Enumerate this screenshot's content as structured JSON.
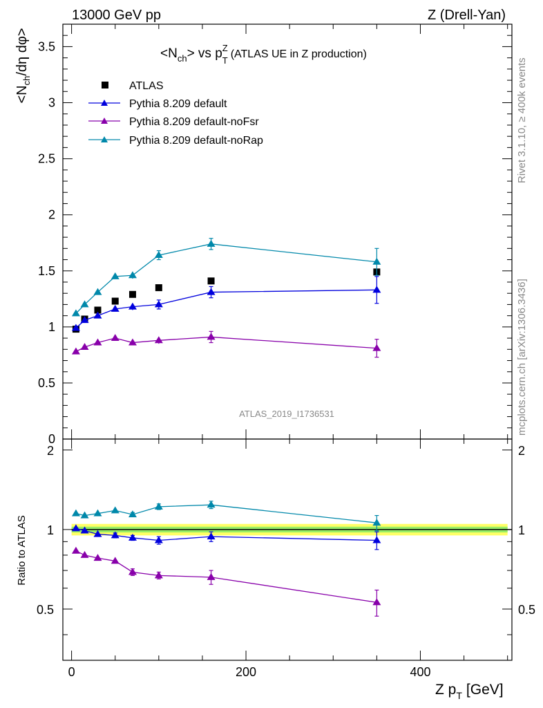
{
  "header": {
    "left": "13000 GeV pp",
    "right": "Z (Drell-Yan)"
  },
  "side_labels": {
    "rivet": "Rivet 3.1.10, ≥ 400k events",
    "mcplots": "mcplots.cern.ch [arXiv:1306.3436]"
  },
  "watermark": "ATLAS_2019_I1736531",
  "chart_data": {
    "type": "scatter",
    "title": {
      "n": "<N",
      "ch": "ch",
      "vs": "> vs p",
      "t": "T",
      "z": "Z",
      "rest": "(ATLAS UE in Z production)"
    },
    "ylabel": "<N_ch/dη dφ>",
    "xlabel": {
      "main": "Z p",
      "sub": "T",
      "unit": "[GeV]"
    },
    "ratio_ylabel": "Ratio to ATLAS",
    "xlim": [
      -10,
      505
    ],
    "ylim": [
      0,
      3.7
    ],
    "ratio_ylim": [
      0.32,
      2.2
    ],
    "xticks": [
      0,
      200,
      400
    ],
    "yticks": [
      0,
      0.5,
      1,
      1.5,
      2,
      2.5,
      3,
      3.5
    ],
    "yticks_labels": [
      "0",
      "0.5",
      "1",
      "1.5",
      "2",
      "2.5",
      "3",
      "3.5"
    ],
    "ratio_yticks": [
      0.5,
      1,
      2
    ],
    "x": [
      5,
      15,
      30,
      50,
      70,
      100,
      160,
      350
    ],
    "series": [
      {
        "name": "ATLAS",
        "color": "#000000",
        "marker": "square",
        "values": [
          0.98,
          1.07,
          1.15,
          1.23,
          1.29,
          1.35,
          1.41,
          1.49
        ],
        "errors": [
          0.01,
          0.01,
          0.01,
          0.01,
          0.01,
          0.01,
          0.01,
          0.02
        ],
        "band": [
          0.02,
          0.02,
          0.02,
          0.02,
          0.02,
          0.02,
          0.02,
          0.02
        ]
      },
      {
        "name": "Pythia 8.209 default",
        "color": "#0000dd",
        "marker": "triangle",
        "values": [
          0.99,
          1.06,
          1.1,
          1.16,
          1.18,
          1.2,
          1.31,
          1.33
        ],
        "errors": [
          0.01,
          0.01,
          0.015,
          0.02,
          0.03,
          0.04,
          0.05,
          0.12
        ],
        "ratio": [
          1.01,
          0.99,
          0.96,
          0.95,
          0.93,
          0.91,
          0.94,
          0.91
        ],
        "ratio_errors": [
          0.01,
          0.01,
          0.01,
          0.02,
          0.02,
          0.03,
          0.04,
          0.07
        ]
      },
      {
        "name": "Pythia 8.209 default-noFsr",
        "color": "#8800aa",
        "marker": "triangle",
        "values": [
          0.78,
          0.82,
          0.86,
          0.9,
          0.86,
          0.88,
          0.91,
          0.81
        ],
        "errors": [
          0.01,
          0.01,
          0.015,
          0.02,
          0.02,
          0.03,
          0.05,
          0.08
        ],
        "ratio": [
          0.83,
          0.8,
          0.78,
          0.76,
          0.69,
          0.67,
          0.66,
          0.53
        ],
        "ratio_errors": [
          0.01,
          0.01,
          0.01,
          0.015,
          0.02,
          0.02,
          0.04,
          0.06
        ]
      },
      {
        "name": "Pythia 8.209 default-noRap",
        "color": "#0088aa",
        "marker": "triangle",
        "values": [
          1.12,
          1.2,
          1.31,
          1.45,
          1.46,
          1.64,
          1.74,
          1.58
        ],
        "errors": [
          0.01,
          0.01,
          0.015,
          0.02,
          0.03,
          0.04,
          0.05,
          0.12
        ],
        "ratio": [
          1.15,
          1.13,
          1.15,
          1.18,
          1.14,
          1.22,
          1.24,
          1.06
        ],
        "ratio_errors": [
          0.01,
          0.01,
          0.01,
          0.015,
          0.02,
          0.03,
          0.04,
          0.07
        ]
      }
    ]
  }
}
